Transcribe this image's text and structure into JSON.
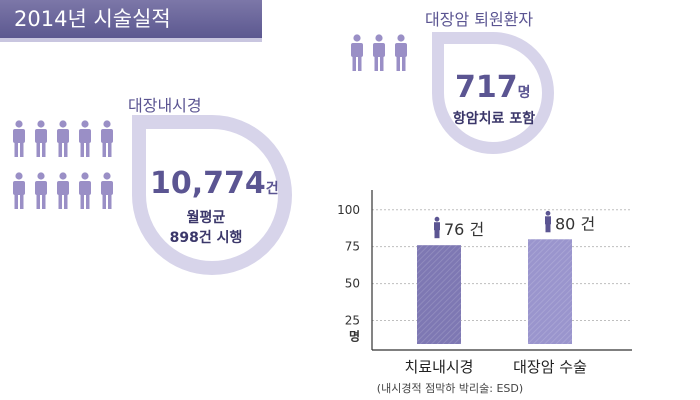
{
  "header": {
    "title": "2014년 시술실적"
  },
  "left_panel": {
    "heading": "대장내시경",
    "value": "10,774",
    "unit": "건",
    "sub1": "월평균",
    "sub2": "898건 시행"
  },
  "right_panel": {
    "heading": "대장암 퇴원환자",
    "value": "717",
    "unit": "명",
    "sub": "항암치료 포함"
  },
  "colors": {
    "accent": "#5b5592",
    "light": "#d7d4ea",
    "person": "#9a8fc6"
  },
  "chart_data": {
    "type": "bar",
    "categories": [
      "치료내시경",
      "대장암 수술"
    ],
    "values": [
      76,
      80
    ],
    "value_labels": [
      "76 건",
      "80 건"
    ],
    "ylabel": "명",
    "yticks": [
      25,
      50,
      75,
      100
    ],
    "ylim": [
      5,
      110
    ],
    "footnote": "(내시경적 점막하 박리술: ESD)",
    "bar_colors": [
      "#7e78b3",
      "#9a95cd"
    ]
  }
}
